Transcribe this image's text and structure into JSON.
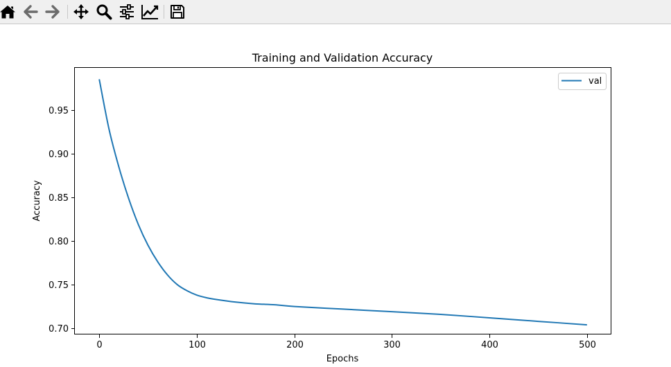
{
  "toolbar": {
    "buttons": [
      {
        "name": "home-icon",
        "tooltip": "Home"
      },
      {
        "name": "back-arrow-icon",
        "tooltip": "Back"
      },
      {
        "name": "forward-arrow-icon",
        "tooltip": "Forward"
      },
      {
        "name": "pan-move-icon",
        "tooltip": "Pan"
      },
      {
        "name": "zoom-magnifier-icon",
        "tooltip": "Zoom"
      },
      {
        "name": "configure-subplots-icon",
        "tooltip": "Subplots"
      },
      {
        "name": "edit-axis-curve-icon",
        "tooltip": "Customize"
      },
      {
        "name": "save-floppy-icon",
        "tooltip": "Save"
      }
    ]
  },
  "chart_data": {
    "type": "line",
    "title": "Training and Validation Accuracy",
    "xlabel": "Epochs",
    "ylabel": "Accuracy",
    "xlim": [
      -25,
      525
    ],
    "ylim": [
      0.693,
      0.998
    ],
    "xticks": [
      0,
      100,
      200,
      300,
      400,
      500
    ],
    "xtick_labels": [
      "0",
      "100",
      "200",
      "300",
      "400",
      "500"
    ],
    "yticks": [
      0.7,
      0.75,
      0.8,
      0.85,
      0.9,
      0.95
    ],
    "ytick_labels": [
      "0.70",
      "0.75",
      "0.80",
      "0.85",
      "0.90",
      "0.95"
    ],
    "grid": false,
    "legend_position": "top-right",
    "series": [
      {
        "name": "val",
        "color": "#1f77b4",
        "x": [
          0,
          10,
          20,
          30,
          40,
          50,
          60,
          70,
          80,
          90,
          100,
          110,
          120,
          140,
          160,
          180,
          200,
          250,
          300,
          350,
          400,
          450,
          500
        ],
        "y": [
          0.985,
          0.928,
          0.885,
          0.849,
          0.819,
          0.795,
          0.776,
          0.761,
          0.75,
          0.743,
          0.738,
          0.735,
          0.733,
          0.73,
          0.728,
          0.727,
          0.725,
          0.722,
          0.719,
          0.716,
          0.712,
          0.708,
          0.704
        ]
      }
    ]
  }
}
